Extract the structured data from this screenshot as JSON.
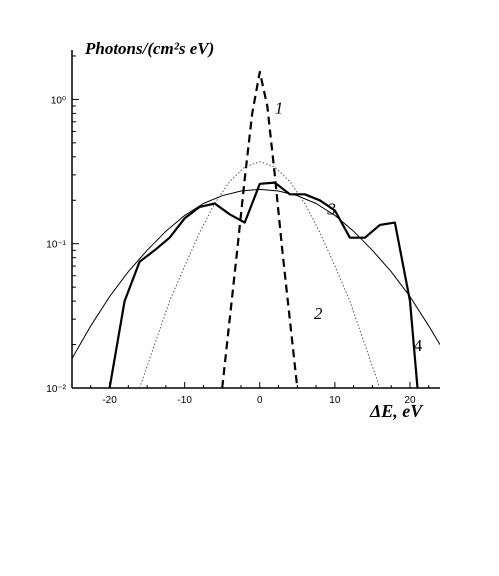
{
  "chart_data": {
    "type": "line",
    "title": "",
    "ylabel": "Photons/(cm²s eV)",
    "xlabel": "ΔE, eV",
    "xlim": [
      -25,
      24
    ],
    "ylim": [
      0.01,
      2.2
    ],
    "yscale": "log",
    "grid": false,
    "x_ticks": [
      -20,
      -10,
      0,
      10,
      20
    ],
    "x_tick_labels": [
      "-20",
      "-10",
      "0",
      "10",
      "20"
    ],
    "y_ticks": [
      0.01,
      0.1,
      1
    ],
    "y_tick_labels": [
      "10⁻²",
      "10⁻¹",
      "10⁰"
    ],
    "series": [
      {
        "name": "1",
        "style": "dashed",
        "x": [
          -5,
          -4,
          -3,
          -2,
          -1,
          0,
          1,
          2,
          3,
          4,
          5
        ],
        "y": [
          0.01,
          0.03,
          0.09,
          0.28,
          0.8,
          1.55,
          0.9,
          0.3,
          0.09,
          0.03,
          0.01
        ]
      },
      {
        "name": "2",
        "style": "dotted",
        "x": [
          -16,
          -14,
          -12,
          -10,
          -8,
          -6,
          -4,
          -2,
          0,
          2,
          4,
          6,
          8,
          10,
          12,
          14,
          16
        ],
        "y": [
          0.01,
          0.02,
          0.04,
          0.07,
          0.12,
          0.19,
          0.27,
          0.34,
          0.37,
          0.34,
          0.27,
          0.19,
          0.12,
          0.07,
          0.04,
          0.02,
          0.01
        ]
      },
      {
        "name": "3",
        "style": "solid-bold",
        "x": [
          -20,
          -18,
          -16,
          -14,
          -12,
          -10,
          -8,
          -6,
          -4,
          -2,
          0,
          2,
          4,
          6,
          8,
          10,
          12,
          14,
          16,
          18,
          20,
          21
        ],
        "y": [
          0.01,
          0.04,
          0.075,
          0.09,
          0.11,
          0.15,
          0.18,
          0.19,
          0.16,
          0.14,
          0.26,
          0.265,
          0.22,
          0.22,
          0.2,
          0.17,
          0.11,
          0.11,
          0.135,
          0.14,
          0.04,
          0.01
        ]
      },
      {
        "name": "4",
        "style": "solid-thin",
        "x": [
          -25,
          -22.5,
          -20,
          -17.5,
          -15,
          -12.5,
          -10,
          -7.5,
          -5,
          -2.5,
          0,
          2.5,
          5,
          7.5,
          10,
          12.5,
          15,
          17.5,
          20,
          22.5,
          24
        ],
        "y": [
          0.016,
          0.027,
          0.043,
          0.064,
          0.09,
          0.122,
          0.157,
          0.19,
          0.215,
          0.232,
          0.238,
          0.232,
          0.215,
          0.19,
          0.157,
          0.122,
          0.09,
          0.064,
          0.043,
          0.027,
          0.02
        ]
      }
    ],
    "curve_labels": [
      {
        "text": "1",
        "x": 2,
        "y": 0.8
      },
      {
        "text": "2",
        "x": 7.2,
        "y": 0.03
      },
      {
        "text": "3",
        "x": 9.0,
        "y": 0.16
      },
      {
        "text": "4",
        "x": 20.5,
        "y": 0.018
      }
    ]
  }
}
